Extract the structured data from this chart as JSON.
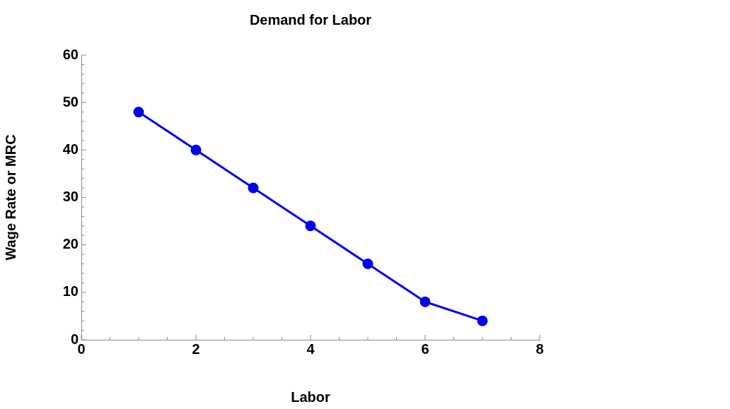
{
  "chart_data": {
    "type": "line",
    "title": "Demand for Labor",
    "xlabel": "Labor",
    "ylabel": "Wage Rate or MRC",
    "x": [
      1,
      2,
      3,
      4,
      5,
      6,
      7
    ],
    "series": [
      {
        "color": "#0000ee",
        "values": [
          48,
          40,
          32,
          24,
          16,
          8,
          4
        ]
      }
    ],
    "xlim": [
      0,
      8
    ],
    "xticks": [
      0,
      {
        "value": 0.5,
        "label": null
      },
      {
        "value": 1,
        "label": null
      },
      {
        "value": 1.5,
        "label": null
      },
      2,
      {
        "value": 2.5,
        "label": null
      },
      {
        "value": 3,
        "label": null
      },
      {
        "value": 3.5,
        "label": null
      },
      4,
      {
        "value": 4.5,
        "label": null
      },
      {
        "value": 5,
        "label": null
      },
      {
        "value": 5.5,
        "label": null
      },
      6,
      {
        "value": 6.5,
        "label": null
      },
      {
        "value": 7,
        "label": null
      },
      {
        "value": 7.5,
        "label": null
      },
      8
    ],
    "ylim": [
      0,
      60
    ],
    "yticks": [
      0,
      {
        "value": 2,
        "label": null
      },
      {
        "value": 4,
        "label": null
      },
      {
        "value": 6,
        "label": null
      },
      {
        "value": 8,
        "label": null
      },
      10,
      {
        "value": 12,
        "label": null
      },
      {
        "value": 14,
        "label": null
      },
      {
        "value": 16,
        "label": null
      },
      {
        "value": 18,
        "label": null
      },
      20,
      {
        "value": 22,
        "label": null
      },
      {
        "value": 24,
        "label": null
      },
      {
        "value": 26,
        "label": null
      },
      {
        "value": 28,
        "label": null
      },
      30,
      {
        "value": 32,
        "label": null
      },
      {
        "value": 34,
        "label": null
      },
      {
        "value": 36,
        "label": null
      },
      {
        "value": 38,
        "label": null
      },
      40,
      {
        "value": 42,
        "label": null
      },
      {
        "value": 44,
        "label": null
      },
      {
        "value": 46,
        "label": null
      },
      {
        "value": 48,
        "label": null
      },
      50,
      {
        "value": 52,
        "label": null
      },
      {
        "value": 54,
        "label": null
      },
      {
        "value": 56,
        "label": null
      },
      {
        "value": 58,
        "label": null
      },
      60
    ],
    "grid": false,
    "legend": false,
    "marker": "circle",
    "line_style": "solid"
  }
}
